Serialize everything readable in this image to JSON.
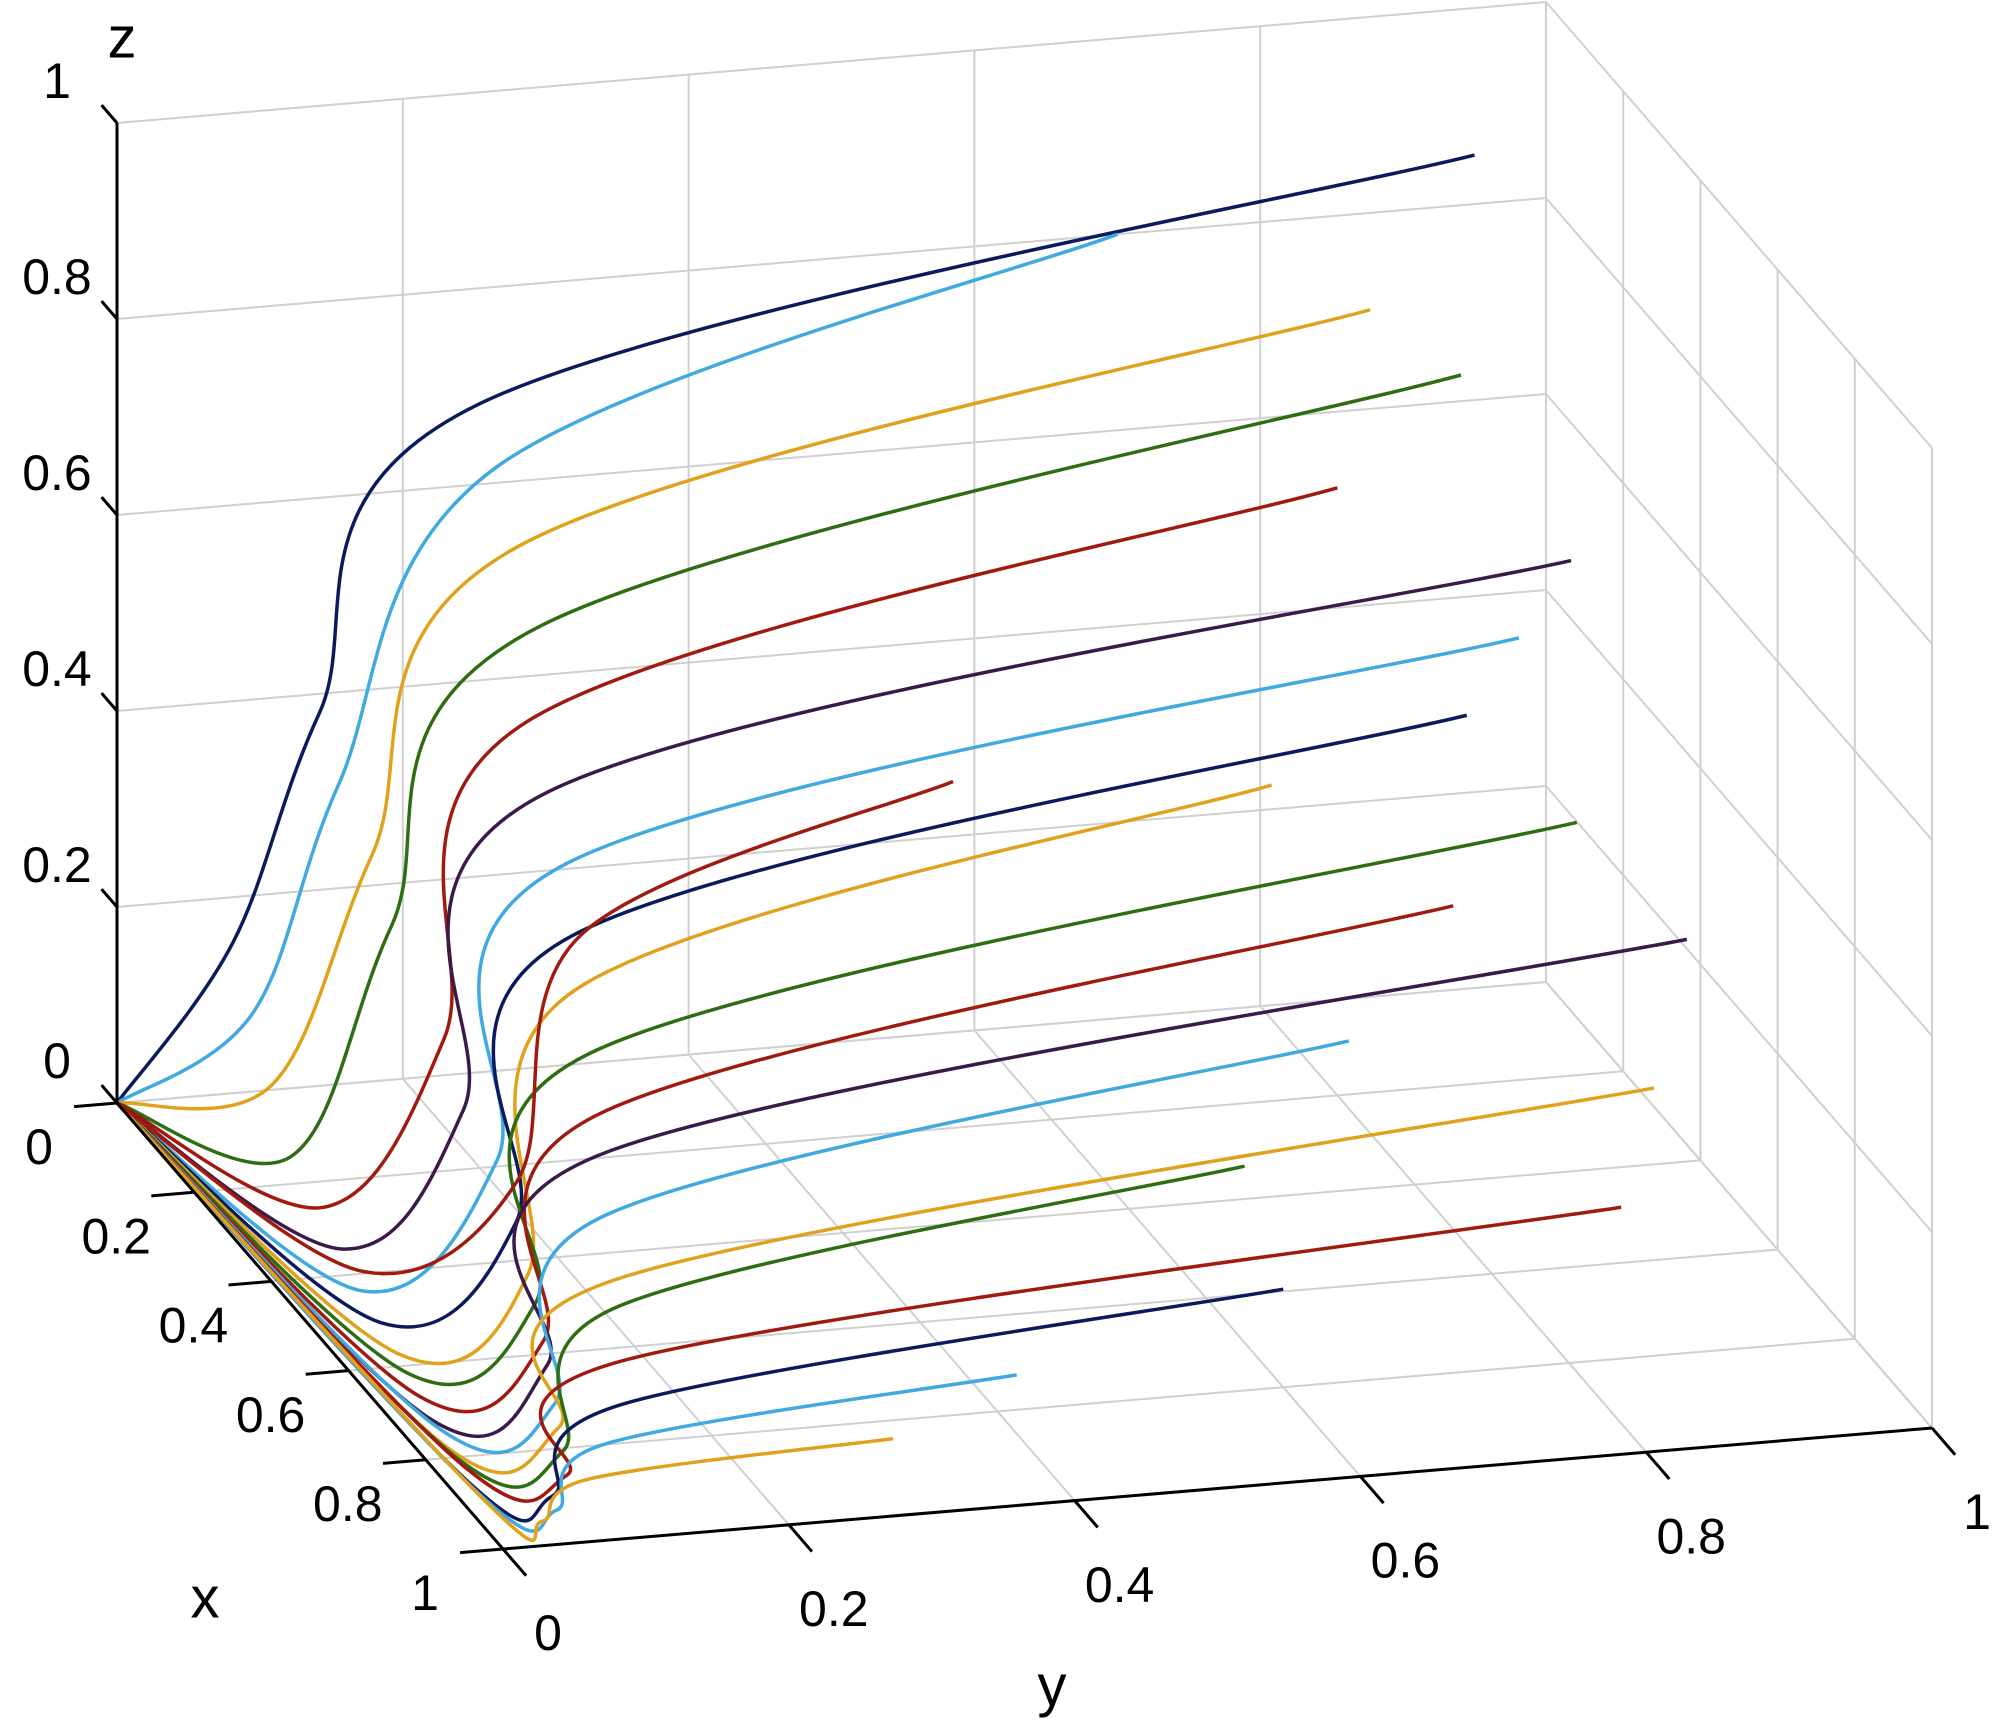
{
  "chart_data": {
    "type": "line3d",
    "xlabel": "x",
    "ylabel": "y",
    "zlabel": "z",
    "xlim": [
      0,
      1
    ],
    "ylim": [
      0,
      1
    ],
    "zlim": [
      0,
      1
    ],
    "xticks": [
      0,
      0.2,
      0.4,
      0.6,
      0.8,
      1
    ],
    "yticks": [
      0,
      0.2,
      0.4,
      0.6,
      0.8,
      1
    ],
    "zticks": [
      0,
      0.2,
      0.4,
      0.6,
      0.8,
      1
    ],
    "grid": true,
    "series": [
      {
        "color": "#0b1a5c",
        "x": [
          0,
          0.3,
          0.45,
          0.2,
          0
        ],
        "y": [
          0,
          0,
          0.02,
          0.2,
          0.95
        ],
        "z": [
          0,
          0.3,
          0.6,
          0.78,
          0.85
        ]
      },
      {
        "color": "#3fa9e0",
        "x": [
          0,
          0.35,
          0.5,
          0.25,
          0
        ],
        "y": [
          0,
          0,
          0.02,
          0.2,
          0.7
        ],
        "z": [
          0,
          0.25,
          0.55,
          0.74,
          0.8
        ]
      },
      {
        "color": "#e0a21c",
        "x": [
          0,
          0.4,
          0.55,
          0.3,
          0.1
        ],
        "y": [
          0,
          0,
          0.03,
          0.2,
          0.85
        ],
        "z": [
          0,
          0.2,
          0.5,
          0.68,
          0.75
        ]
      },
      {
        "color": "#2e6e12",
        "x": [
          0,
          0.45,
          0.6,
          0.35,
          0.15
        ],
        "y": [
          0,
          0,
          0.03,
          0.2,
          0.9
        ],
        "z": [
          0,
          0.15,
          0.45,
          0.62,
          0.7
        ]
      },
      {
        "color": "#a01a10",
        "x": [
          0,
          0.5,
          0.7,
          0.4,
          0.2
        ],
        "y": [
          0,
          0.01,
          0.04,
          0.18,
          0.8
        ],
        "z": [
          0,
          0.12,
          0.38,
          0.55,
          0.62
        ]
      },
      {
        "color": "#3b1a4a",
        "x": [
          0,
          0.55,
          0.75,
          0.45,
          0.25
        ],
        "y": [
          0,
          0.01,
          0.04,
          0.18,
          0.95
        ],
        "z": [
          0,
          0.1,
          0.33,
          0.5,
          0.55
        ]
      },
      {
        "color": "#3fa9e0",
        "x": [
          0,
          0.6,
          0.8,
          0.5,
          0.3
        ],
        "y": [
          0,
          0.01,
          0.05,
          0.18,
          0.9
        ],
        "z": [
          0,
          0.08,
          0.3,
          0.45,
          0.5
        ]
      },
      {
        "color": "#0b1a5c",
        "x": [
          0,
          0.65,
          0.85,
          0.55,
          0.35
        ],
        "y": [
          0,
          0.01,
          0.05,
          0.17,
          0.85
        ],
        "z": [
          0,
          0.07,
          0.26,
          0.4,
          0.45
        ]
      },
      {
        "color": "#e0a21c",
        "x": [
          0,
          0.7,
          0.88,
          0.6,
          0.4
        ],
        "y": [
          0,
          0.01,
          0.05,
          0.16,
          0.7
        ],
        "z": [
          0,
          0.06,
          0.22,
          0.37,
          0.42
        ]
      },
      {
        "color": "#2e6e12",
        "x": [
          0,
          0.72,
          0.9,
          0.65,
          0.45
        ],
        "y": [
          0,
          0.01,
          0.05,
          0.16,
          0.9
        ],
        "z": [
          0,
          0.05,
          0.2,
          0.33,
          0.38
        ]
      },
      {
        "color": "#a01a10",
        "x": [
          0,
          0.75,
          0.92,
          0.7,
          0.5
        ],
        "y": [
          0,
          0.01,
          0.05,
          0.15,
          0.8
        ],
        "z": [
          0,
          0.04,
          0.17,
          0.29,
          0.33
        ]
      },
      {
        "color": "#3b1a4a",
        "x": [
          0,
          0.78,
          0.93,
          0.72,
          0.55
        ],
        "y": [
          0,
          0.01,
          0.05,
          0.15,
          0.95
        ],
        "z": [
          0,
          0.03,
          0.15,
          0.26,
          0.3
        ]
      },
      {
        "color": "#3fa9e0",
        "x": [
          0,
          0.8,
          0.95,
          0.75,
          0.6
        ],
        "y": [
          0,
          0.01,
          0.05,
          0.14,
          0.7
        ],
        "z": [
          0,
          0.03,
          0.12,
          0.21,
          0.25
        ]
      },
      {
        "color": "#e0a21c",
        "x": [
          0,
          0.82,
          0.96,
          0.8,
          0.65
        ],
        "y": [
          0,
          0.01,
          0.05,
          0.14,
          0.9
        ],
        "z": [
          0,
          0.02,
          0.1,
          0.17,
          0.2
        ]
      },
      {
        "color": "#2e6e12",
        "x": [
          0,
          0.84,
          0.97,
          0.82,
          0.7
        ],
        "y": [
          0,
          0.01,
          0.05,
          0.13,
          0.6
        ],
        "z": [
          0,
          0.02,
          0.08,
          0.15,
          0.18
        ]
      },
      {
        "color": "#a01a10",
        "x": [
          0,
          0.86,
          0.98,
          0.85,
          0.75
        ],
        "y": [
          0,
          0.01,
          0.05,
          0.13,
          0.85
        ],
        "z": [
          0,
          0.02,
          0.06,
          0.11,
          0.13
        ]
      },
      {
        "color": "#0b1a5c",
        "x": [
          0,
          0.88,
          0.98,
          0.88,
          0.8
        ],
        "y": [
          0,
          0.01,
          0.04,
          0.12,
          0.6
        ],
        "z": [
          0,
          0.01,
          0.04,
          0.08,
          0.1
        ]
      },
      {
        "color": "#3fa9e0",
        "x": [
          0,
          0.9,
          0.99,
          0.9,
          0.85
        ],
        "y": [
          0,
          0.01,
          0.04,
          0.1,
          0.4
        ],
        "z": [
          0,
          0.01,
          0.03,
          0.05,
          0.06
        ]
      },
      {
        "color": "#e0a21c",
        "x": [
          0,
          0.92,
          0.99,
          0.93,
          0.9
        ],
        "y": [
          0,
          0.01,
          0.03,
          0.08,
          0.3
        ],
        "z": [
          0,
          0.01,
          0.02,
          0.03,
          0.03
        ]
      },
      {
        "color": "#a01a10",
        "x": [
          0,
          0.6,
          0.85,
          0.65,
          0.5
        ],
        "y": [
          0,
          0.01,
          0.05,
          0.15,
          0.45
        ],
        "z": [
          0,
          0.1,
          0.3,
          0.45,
          0.5
        ]
      }
    ]
  }
}
